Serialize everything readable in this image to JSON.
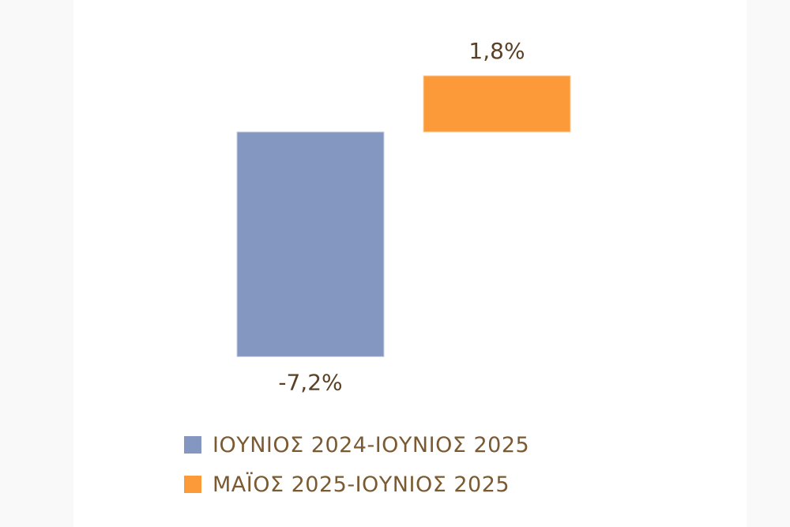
{
  "chart_data": {
    "type": "bar",
    "title": "",
    "xlabel": "",
    "ylabel": "",
    "ylim": [
      -7.2,
      1.8
    ],
    "grid": false,
    "legend_position": "bottom",
    "series": [
      {
        "name": "ΙΟΥΝΙΟΣ 2024-ΙΟΥΝΙΟΣ 2025",
        "value": -7.2,
        "data_label": "-7,2%",
        "color": "#8497c0"
      },
      {
        "name": "ΜΑΪΟΣ 2025-ΙΟΥΝΙΟΣ 2025",
        "value": 1.8,
        "data_label": "1,8%",
        "color": "#fc9a3a"
      }
    ]
  }
}
